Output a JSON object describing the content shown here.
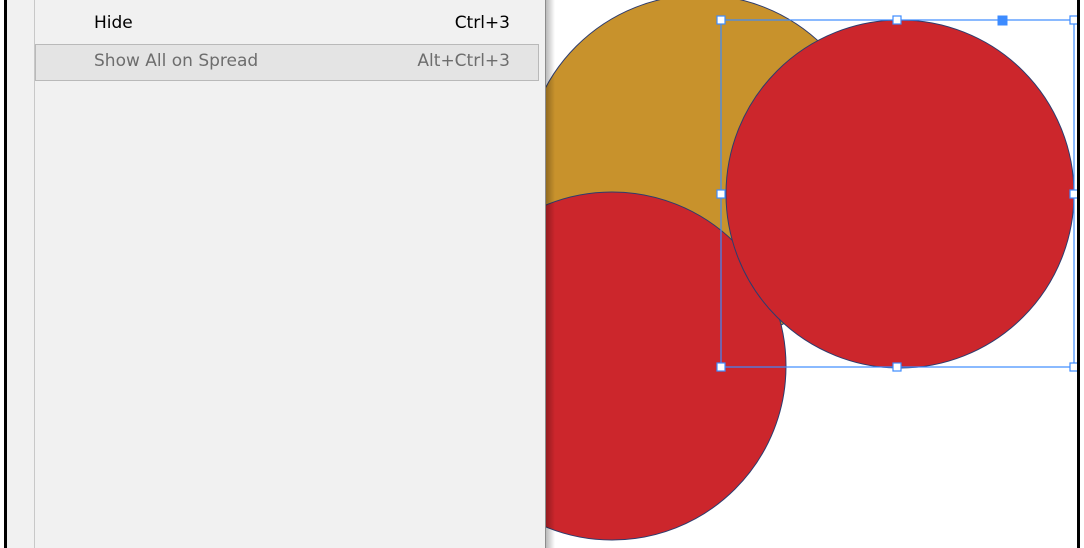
{
  "menu": {
    "items": [
      {
        "label": "Hide",
        "shortcut": "Ctrl+3",
        "state": "normal"
      },
      {
        "label": "Show All on Spread",
        "shortcut": "Alt+Ctrl+3",
        "state": "disabled-highlighted"
      }
    ]
  },
  "canvas": {
    "colors": {
      "orange_circle": "#c8922c",
      "red_circle": "#cc262c",
      "circle_outline": "#2d3c6e",
      "selection": "#3d8bff"
    }
  }
}
